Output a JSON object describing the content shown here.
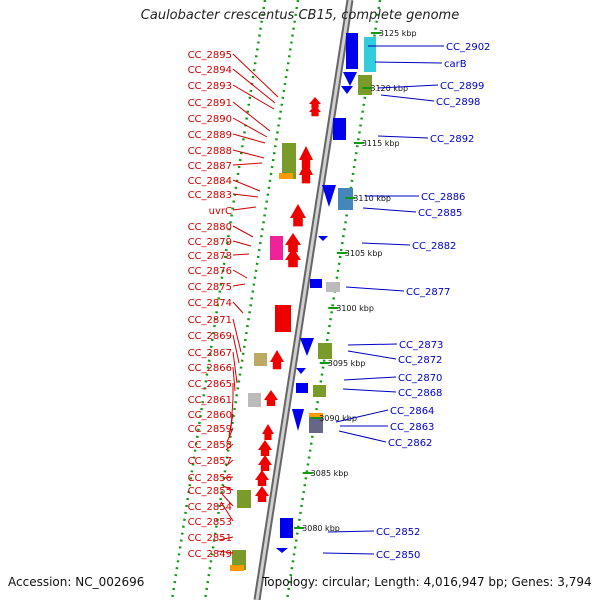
{
  "title": "Caulobacter crescentus CB15, complete genome",
  "footer": {
    "accession": "Accession: NC_002696",
    "stats": "Topology: circular; Length: 4,016,947 bp; Genes: 3,794"
  },
  "colors": {
    "forward_gene": "#ee0000",
    "reverse_gene": "#0000ee",
    "left_label": "#d00000",
    "right_label": "#0000c0",
    "backbone": "#999999",
    "dots": "#119911",
    "rrna_olive": "#7a9a2a",
    "cyan": "#33ccdd",
    "steel": "#4488bb",
    "magenta": "#ee2299",
    "orange": "#ff9900"
  },
  "kbp_marks": [
    {
      "label": "3125 kbp"
    },
    {
      "label": "3120 kbp"
    },
    {
      "label": "3115 kbp"
    },
    {
      "label": "3110 kbp"
    },
    {
      "label": "3105 kbp"
    },
    {
      "label": "3100 kbp"
    },
    {
      "label": "3095 kbp"
    },
    {
      "label": "3090 kbp"
    },
    {
      "label": "3085 kbp"
    },
    {
      "label": "3080 kbp"
    }
  ],
  "left_labels": [
    "CC_2895",
    "CC_2894",
    "CC_2893",
    "CC_2891",
    "CC_2890",
    "CC_2889",
    "CC_2888",
    "CC_2887",
    "CC_2884",
    "CC_2883",
    "uvrC",
    "CC_2880",
    "CC_2879",
    "CC_2878",
    "CC_2876",
    "CC_2875",
    "CC_2874",
    "CC_2871",
    "CC_2869",
    "CC_2867",
    "CC_2866",
    "CC_2865",
    "CC_2861",
    "CC_2860",
    "CC_2859",
    "CC_2858",
    "CC_2857",
    "CC_2856",
    "CC_2855",
    "CC_2854",
    "CC_2853",
    "CC_2851",
    "CC_2849"
  ],
  "right_labels": [
    "CC_2902",
    "carB",
    "CC_2899",
    "CC_2898",
    "CC_2892",
    "CC_2886",
    "CC_2885",
    "CC_2882",
    "CC_2877",
    "CC_2873",
    "CC_2872",
    "CC_2870",
    "CC_2868",
    "CC_2864",
    "CC_2863",
    "CC_2862",
    "CC_2852",
    "CC_2850"
  ]
}
